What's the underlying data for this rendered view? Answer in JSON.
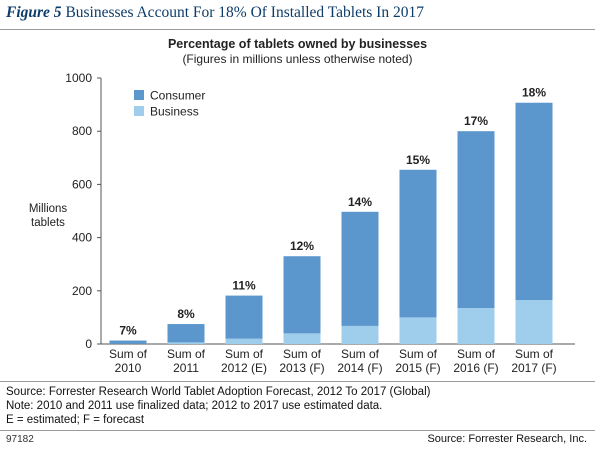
{
  "figure": {
    "label": "Figure 5",
    "title": "Businesses Account For 18% Of Installed Tablets In 2017"
  },
  "chart_data": {
    "type": "bar",
    "stacked": true,
    "title": "Percentage of tablets owned by businesses",
    "subtitle": "(Figures in millions unless otherwise noted)",
    "ylabel": "Millions tablets",
    "ylabel_lines": [
      "Millions",
      "tablets"
    ],
    "ylim": [
      0,
      1000
    ],
    "yticks": [
      0,
      200,
      400,
      600,
      800,
      1000
    ],
    "grid": false,
    "legend_position": "top-left",
    "categories": [
      "Sum of 2010",
      "Sum of 2011",
      "Sum of 2012 (E)",
      "Sum of 2013 (F)",
      "Sum of 2014 (F)",
      "Sum of 2015 (F)",
      "Sum of 2016 (F)",
      "Sum of 2017 (F)"
    ],
    "category_lines": [
      [
        "Sum of",
        "2010"
      ],
      [
        "Sum of",
        "2011"
      ],
      [
        "Sum of",
        "2012 (E)"
      ],
      [
        "Sum of",
        "2013 (F)"
      ],
      [
        "Sum of",
        "2014 (F)"
      ],
      [
        "Sum of",
        "2015 (F)"
      ],
      [
        "Sum of",
        "2016 (F)"
      ],
      [
        "Sum of",
        "2017 (F)"
      ]
    ],
    "series": [
      {
        "name": "Business",
        "color": "#9fcdec",
        "values": [
          1,
          6,
          20,
          40,
          68,
          100,
          135,
          165
        ]
      },
      {
        "name": "Consumer",
        "color": "#5b96cc",
        "values": [
          12,
          69,
          162,
          290,
          429,
          555,
          665,
          742
        ]
      }
    ],
    "legend_order": [
      "Consumer",
      "Business"
    ],
    "data_labels": [
      "7%",
      "8%",
      "11%",
      "12%",
      "14%",
      "15%",
      "17%",
      "18%"
    ]
  },
  "footer": {
    "source": "Source: Forrester Research World Tablet Adoption Forecast, 2012 To 2017 (Global)",
    "note": "Note: 2010 and 2011 use finalized data; 2012 to 2017 use estimated data.",
    "legend_key": "E = estimated; F = forecast",
    "id": "97182",
    "credit": "Source: Forrester Research, Inc."
  }
}
